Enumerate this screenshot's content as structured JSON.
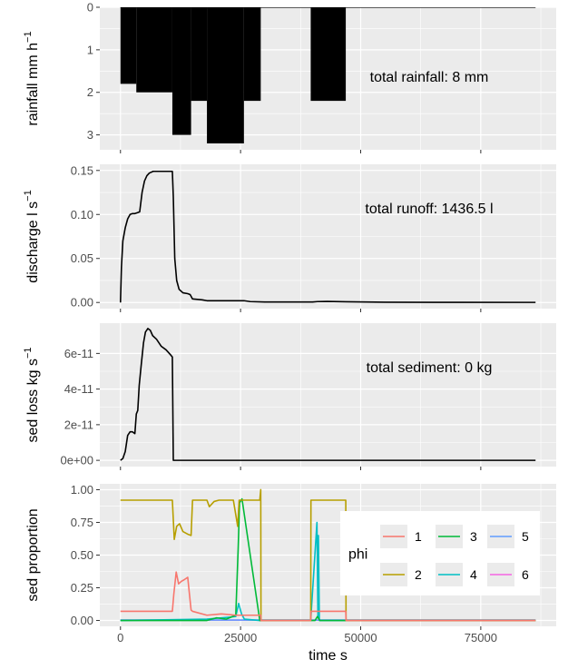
{
  "chart_data": [
    {
      "type": "bar",
      "ylabel": "rainfall",
      "ylabel_unit": "mm h",
      "ylabel_exp": "−1",
      "ylim": [
        0,
        3.35
      ],
      "reversed_y": true,
      "yticks": [
        "0",
        "1",
        "2",
        "3"
      ],
      "annotation": "total rainfall: 8 mm",
      "bars": [
        {
          "x0": 0,
          "x1": 3300,
          "value": 1.8
        },
        {
          "x0": 3300,
          "x1": 10800,
          "value": 2.0
        },
        {
          "x0": 10800,
          "x1": 14700,
          "value": 3.0
        },
        {
          "x0": 14700,
          "x1": 18000,
          "value": 2.2
        },
        {
          "x0": 18000,
          "x1": 25700,
          "value": 3.2
        },
        {
          "x0": 25700,
          "x1": 29200,
          "value": 2.2
        },
        {
          "x0": 39600,
          "x1": 46900,
          "value": 2.2
        }
      ]
    },
    {
      "type": "line",
      "ylabel": "discharge",
      "ylabel_unit": "l s",
      "ylabel_exp": "−1",
      "ylim": [
        -0.007,
        0.157
      ],
      "yticks": [
        "0.00",
        "0.05",
        "0.10",
        "0.15"
      ],
      "annotation": "total runoff: 1436.5 l",
      "series": [
        {
          "color": "#000000",
          "x": [
            0,
            200,
            500,
            1000,
            1500,
            2000,
            2500,
            3000,
            3500,
            4000,
            4500,
            5000,
            5500,
            6000,
            6800,
            7500,
            8500,
            10000,
            10800,
            11000,
            11300,
            11700,
            12200,
            13000,
            14000,
            14500,
            15000,
            17000,
            18000,
            20000,
            22000,
            24000,
            25700,
            27000,
            30000,
            40000,
            41000,
            43000,
            47000,
            55000,
            65000,
            86400
          ],
          "y": [
            0,
            0.04,
            0.07,
            0.085,
            0.095,
            0.1,
            0.101,
            0.101,
            0.102,
            0.103,
            0.125,
            0.138,
            0.144,
            0.147,
            0.149,
            0.149,
            0.149,
            0.149,
            0.149,
            0.12,
            0.05,
            0.025,
            0.015,
            0.011,
            0.01,
            0.009,
            0.004,
            0.003,
            0.002,
            0.002,
            0.002,
            0.002,
            0.002,
            0.001,
            0.0005,
            0.0005,
            0.001,
            0.0012,
            0.0008,
            0.0003,
            0.0002,
            0.0001
          ]
        }
      ]
    },
    {
      "type": "line",
      "ylabel": "sed loss",
      "ylabel_unit": "kg s",
      "ylabel_exp": "−1",
      "ylim": [
        -3.5e-12,
        7.7e-11
      ],
      "yticks": [
        "0e+00",
        "2e-11",
        "4e-11",
        "6e-11"
      ],
      "ytick_values": [
        0,
        2e-11,
        4e-11,
        6e-11
      ],
      "annotation": "total sediment: 0 kg",
      "series": [
        {
          "color": "#000000",
          "x": [
            0,
            500,
            1000,
            1500,
            2000,
            2500,
            3000,
            3300,
            3600,
            3900,
            4300,
            4800,
            5200,
            5700,
            6200,
            6700,
            7500,
            8500,
            9500,
            10500,
            10800,
            11000,
            11200,
            86400
          ],
          "y": [
            0,
            1e-12,
            5e-12,
            1.4e-11,
            1.6e-11,
            1.6e-11,
            1.5e-11,
            2.6e-11,
            2.8e-11,
            4.2e-11,
            5.3e-11,
            6.6e-11,
            7.2e-11,
            7.4e-11,
            7.3e-11,
            7e-11,
            6.8e-11,
            6.4e-11,
            6.2e-11,
            5.9e-11,
            5.8e-11,
            0,
            0,
            0
          ]
        }
      ]
    },
    {
      "type": "line",
      "ylabel": "sed proportion",
      "xlabel": "time  s",
      "ylim": [
        -0.045,
        1.045
      ],
      "yticks": [
        "0.00",
        "0.25",
        "0.50",
        "0.75",
        "1.00"
      ],
      "xlim": [
        -4300,
        90700
      ],
      "xticks": [
        0,
        25000,
        50000,
        75000
      ],
      "xtick_labels": [
        "0",
        "25000",
        "50000",
        "75000"
      ],
      "legend_title": "phi",
      "legend_position": "inside-right",
      "series": [
        {
          "name": "1",
          "color": "#F8766D",
          "x": [
            0,
            10800,
            11100,
            11600,
            12100,
            12700,
            13200,
            14000,
            14700,
            15000,
            18000,
            21000,
            24000,
            25500,
            29200,
            29250,
            39600,
            39650,
            46900,
            46950,
            86400
          ],
          "y": [
            0.07,
            0.07,
            0.2,
            0.37,
            0.28,
            0.3,
            0.31,
            0.33,
            0.08,
            0.07,
            0.04,
            0.05,
            0.04,
            0.04,
            0.04,
            0,
            0,
            0.07,
            0.07,
            0,
            0
          ]
        },
        {
          "name": "2",
          "color": "#B79F00",
          "x": [
            0,
            10800,
            11200,
            11700,
            12300,
            13000,
            14000,
            14700,
            15000,
            18000,
            18500,
            19500,
            20500,
            22000,
            23500,
            24400,
            24700,
            25400,
            29000,
            29200,
            29250,
            39600,
            39650,
            46900,
            46950,
            86400
          ],
          "y": [
            0.92,
            0.92,
            0.62,
            0.72,
            0.74,
            0.68,
            0.66,
            0.65,
            0.92,
            0.92,
            0.87,
            0.91,
            0.92,
            0.92,
            0.92,
            0.72,
            0.92,
            0.92,
            0.92,
            1.0,
            0,
            0,
            0.92,
            0.92,
            0,
            0
          ]
        },
        {
          "name": "3",
          "color": "#00BA38",
          "x": [
            0,
            18000,
            20000,
            22000,
            24000,
            24500,
            24800,
            25300,
            29000,
            39600,
            40500,
            41000,
            41500,
            86400
          ],
          "y": [
            0,
            0,
            0.02,
            0.01,
            0.04,
            0.55,
            0.9,
            0.93,
            0,
            0,
            0,
            0.03,
            0,
            0
          ]
        },
        {
          "name": "4",
          "color": "#00BFC4",
          "x": [
            0,
            18000,
            21000,
            24000,
            24600,
            25200,
            25800,
            29000,
            39600,
            40900,
            41100,
            41200,
            41400,
            86400
          ],
          "y": [
            0,
            0.01,
            0.02,
            0.03,
            0.13,
            0.05,
            0.01,
            0,
            0,
            0.75,
            0.03,
            0.65,
            0,
            0
          ]
        },
        {
          "name": "5",
          "color": "#619CFF",
          "x": [
            0,
            86400
          ],
          "y": [
            0.003,
            0.003
          ]
        },
        {
          "name": "6",
          "color": "#F564E3",
          "x": [
            0,
            86400
          ],
          "y": [
            0.002,
            0.002
          ]
        }
      ]
    }
  ]
}
